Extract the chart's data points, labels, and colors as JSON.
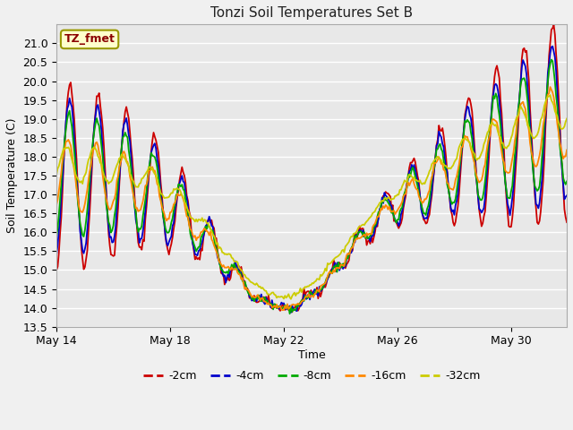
{
  "title": "Tonzi Soil Temperatures Set B",
  "xlabel": "Time",
  "ylabel": "Soil Temperature (C)",
  "annotation": "TZ_fmet",
  "ylim": [
    13.5,
    21.5
  ],
  "axes_bg_color": "#e8e8e8",
  "fig_bg_color": "#f0f0f0",
  "grid_color": "#ffffff",
  "series": [
    {
      "label": "-2cm",
      "color": "#cc0000",
      "lw": 1.3
    },
    {
      "label": "-4cm",
      "color": "#0000cc",
      "lw": 1.3
    },
    {
      "label": "-8cm",
      "color": "#00aa00",
      "lw": 1.3
    },
    {
      "label": "-16cm",
      "color": "#ff8800",
      "lw": 1.3
    },
    {
      "label": "-32cm",
      "color": "#cccc00",
      "lw": 1.3
    }
  ],
  "xtick_labels": [
    "May 14",
    "May 18",
    "May 22",
    "May 26",
    "May 30"
  ],
  "ytick_vals": [
    13.5,
    14.0,
    14.5,
    15.0,
    15.5,
    16.0,
    16.5,
    17.0,
    17.5,
    18.0,
    18.5,
    19.0,
    19.5,
    20.0,
    20.5,
    21.0
  ],
  "n_points": 432
}
